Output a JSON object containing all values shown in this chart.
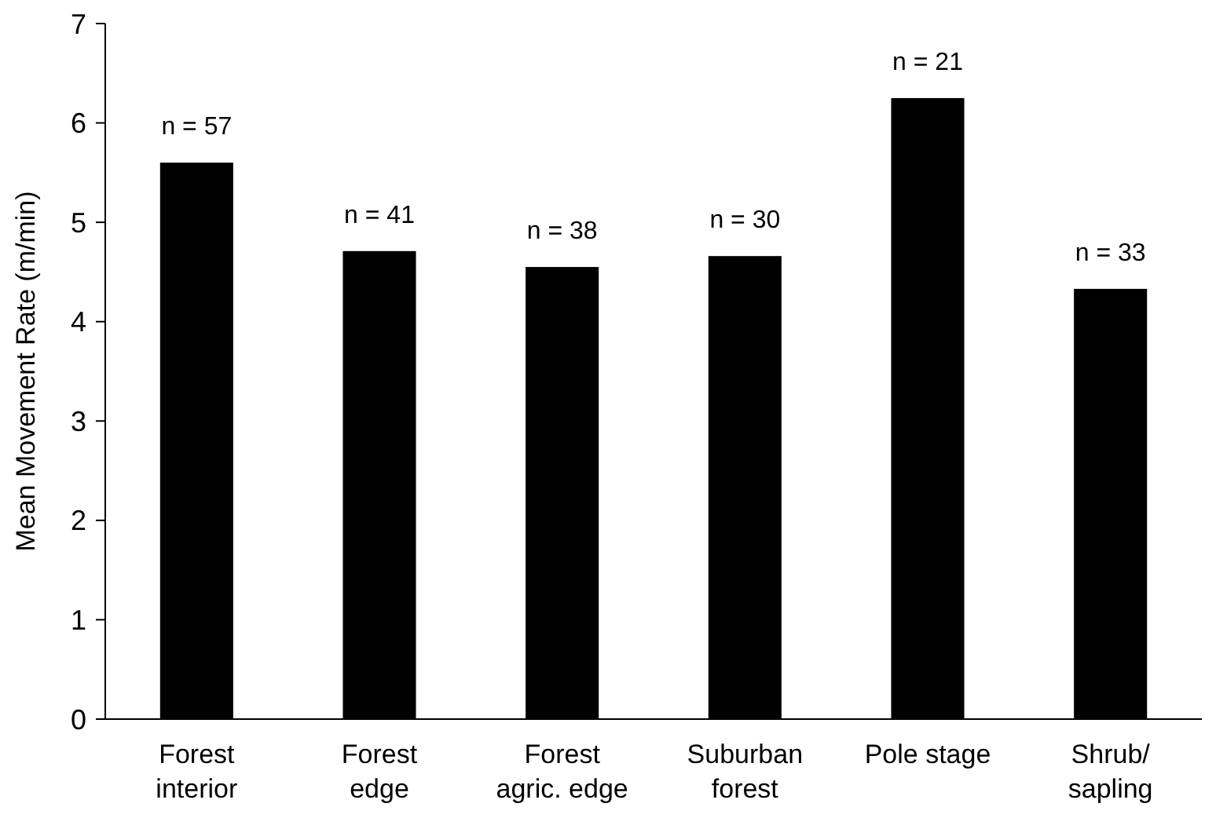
{
  "chart_data": {
    "type": "bar",
    "ylabel": "Mean Movement Rate (m/min)",
    "categories": [
      "Forest\ninterior",
      "Forest\nedge",
      "Forest\nagric. edge",
      "Suburban\nforest",
      "Pole stage",
      "Shrub/\nsapling"
    ],
    "values": [
      5.6,
      4.71,
      4.55,
      4.66,
      6.25,
      4.33
    ],
    "annotations": [
      {
        "text": "n = 57",
        "x": "Forest\ninterior",
        "y": 5.6
      },
      {
        "text": "n = 41",
        "x": "Forest\nedge",
        "y": 4.71
      },
      {
        "text": "n = 38",
        "x": "Forest\nagric. edge",
        "y": 4.55
      },
      {
        "text": "n = 30",
        "x": "Suburban\nforest",
        "y": 4.66
      },
      {
        "text": "n = 21",
        "x": "Pole stage",
        "y": 6.25
      },
      {
        "text": "n = 33",
        "x": "Shrub/\nsapling",
        "y": 4.33
      }
    ],
    "color": "#000000",
    "ylim": [
      0,
      7
    ],
    "yticks": [
      0,
      1,
      2,
      3,
      4,
      5,
      6,
      7
    ],
    "grid": false
  }
}
